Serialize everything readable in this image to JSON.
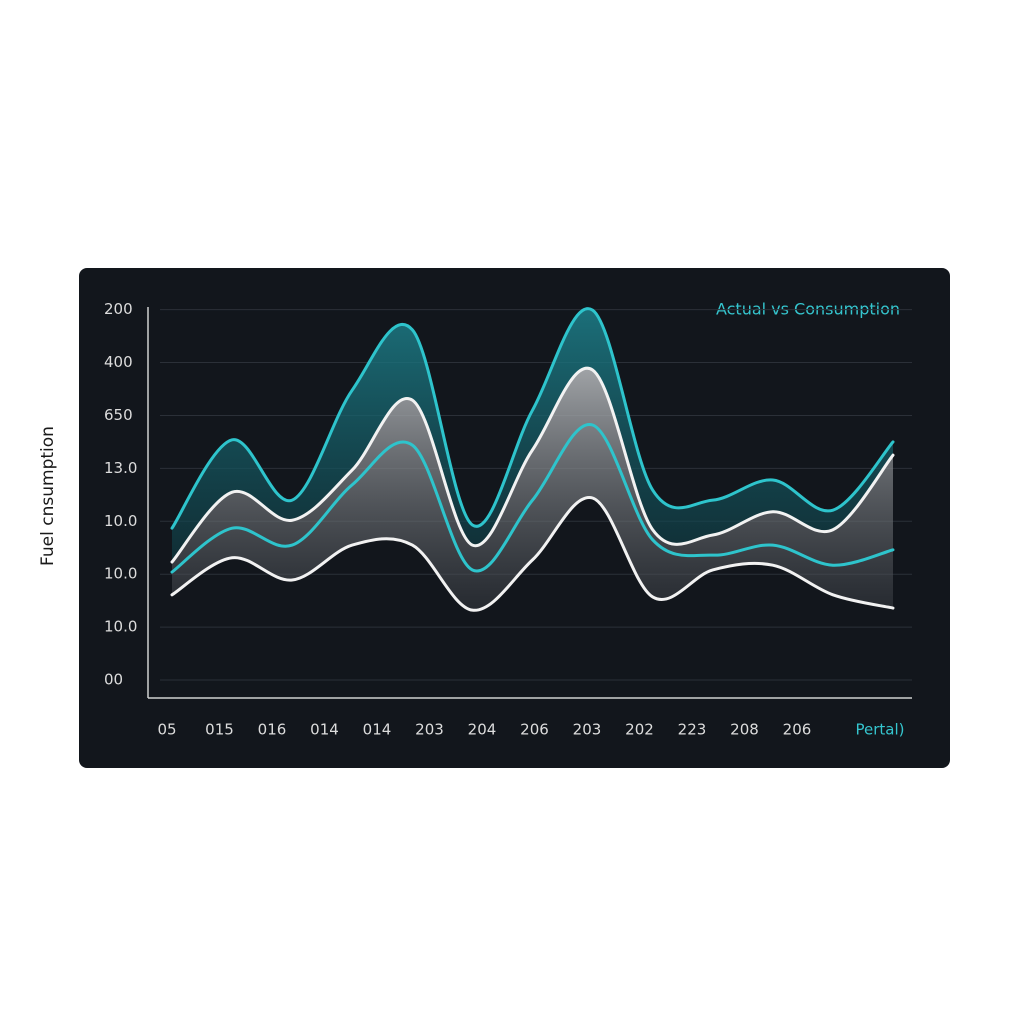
{
  "chart_data": {
    "type": "line",
    "title": "Actual vs Consumption",
    "y_label": "Fuel cnsumption",
    "x_label": "Pertal)",
    "categories": [
      "05",
      "015",
      "016",
      "014",
      "014",
      "203",
      "204",
      "206",
      "203",
      "202",
      "223",
      "208",
      "206"
    ],
    "ylim": [
      -0.34,
      7.05
    ],
    "yticks": [
      {
        "value": 0,
        "label": "00"
      },
      {
        "value": 1,
        "label": "10.0"
      },
      {
        "value": 2,
        "label": "10.0"
      },
      {
        "value": 3,
        "label": "10.0"
      },
      {
        "value": 4,
        "label": "13.0"
      },
      {
        "value": 5,
        "label": "650"
      },
      {
        "value": 6,
        "label": "400"
      },
      {
        "value": 7,
        "label": "200"
      }
    ],
    "grid": true,
    "series": [
      {
        "color": "#2ec4cc",
        "values": [
          2.87,
          4.54,
          3.4,
          5.48,
          6.62,
          2.93,
          5.1,
          6.99,
          3.59,
          3.4,
          3.78,
          3.21,
          4.5
        ]
      },
      {
        "color": "#f2f2f2",
        "values": [
          2.23,
          3.55,
          3.02,
          3.97,
          5.29,
          2.55,
          4.35,
          5.86,
          2.84,
          2.74,
          3.18,
          2.84,
          4.25
        ]
      },
      {
        "color": "#2ec4cc",
        "values": [
          2.04,
          2.87,
          2.55,
          3.69,
          4.44,
          2.08,
          3.4,
          4.82,
          2.65,
          2.36,
          2.55,
          2.17,
          2.46
        ]
      },
      {
        "color": "#f2f2f2",
        "values": [
          1.61,
          2.31,
          1.89,
          2.55,
          2.55,
          1.32,
          2.27,
          3.44,
          1.57,
          2.08,
          2.17,
          1.61,
          1.36
        ]
      }
    ]
  }
}
